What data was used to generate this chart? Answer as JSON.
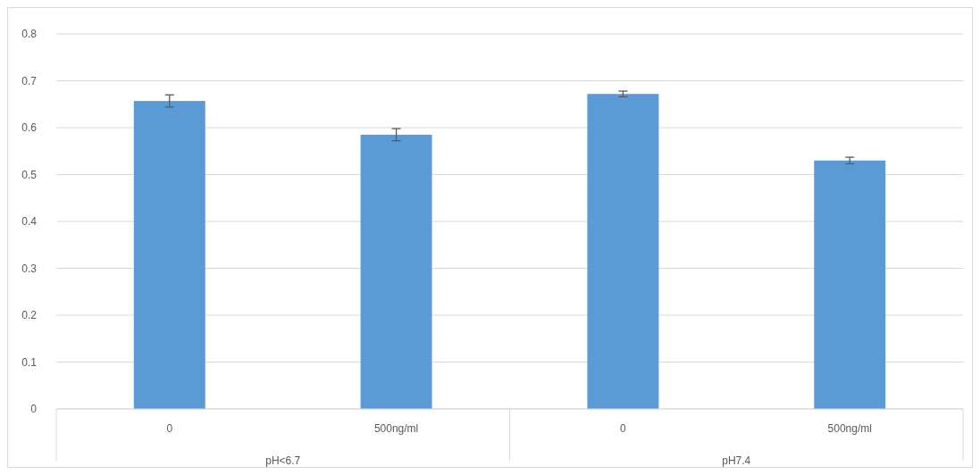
{
  "chart_data": {
    "type": "bar",
    "categories": [
      "0",
      "500ng/ml",
      "0",
      "500ng/ml"
    ],
    "values": [
      0.657,
      0.585,
      0.672,
      0.53
    ],
    "errors": [
      0.013,
      0.013,
      0.006,
      0.007
    ],
    "color": "#5b9bd5",
    "ylim": [
      0,
      0.8
    ],
    "yticks": [
      0,
      0.1,
      0.2,
      0.3,
      0.4,
      0.5,
      0.6,
      0.7,
      0.8
    ],
    "grid": "y",
    "annotations": [
      "pH<6.7",
      "pH7.4"
    ]
  }
}
